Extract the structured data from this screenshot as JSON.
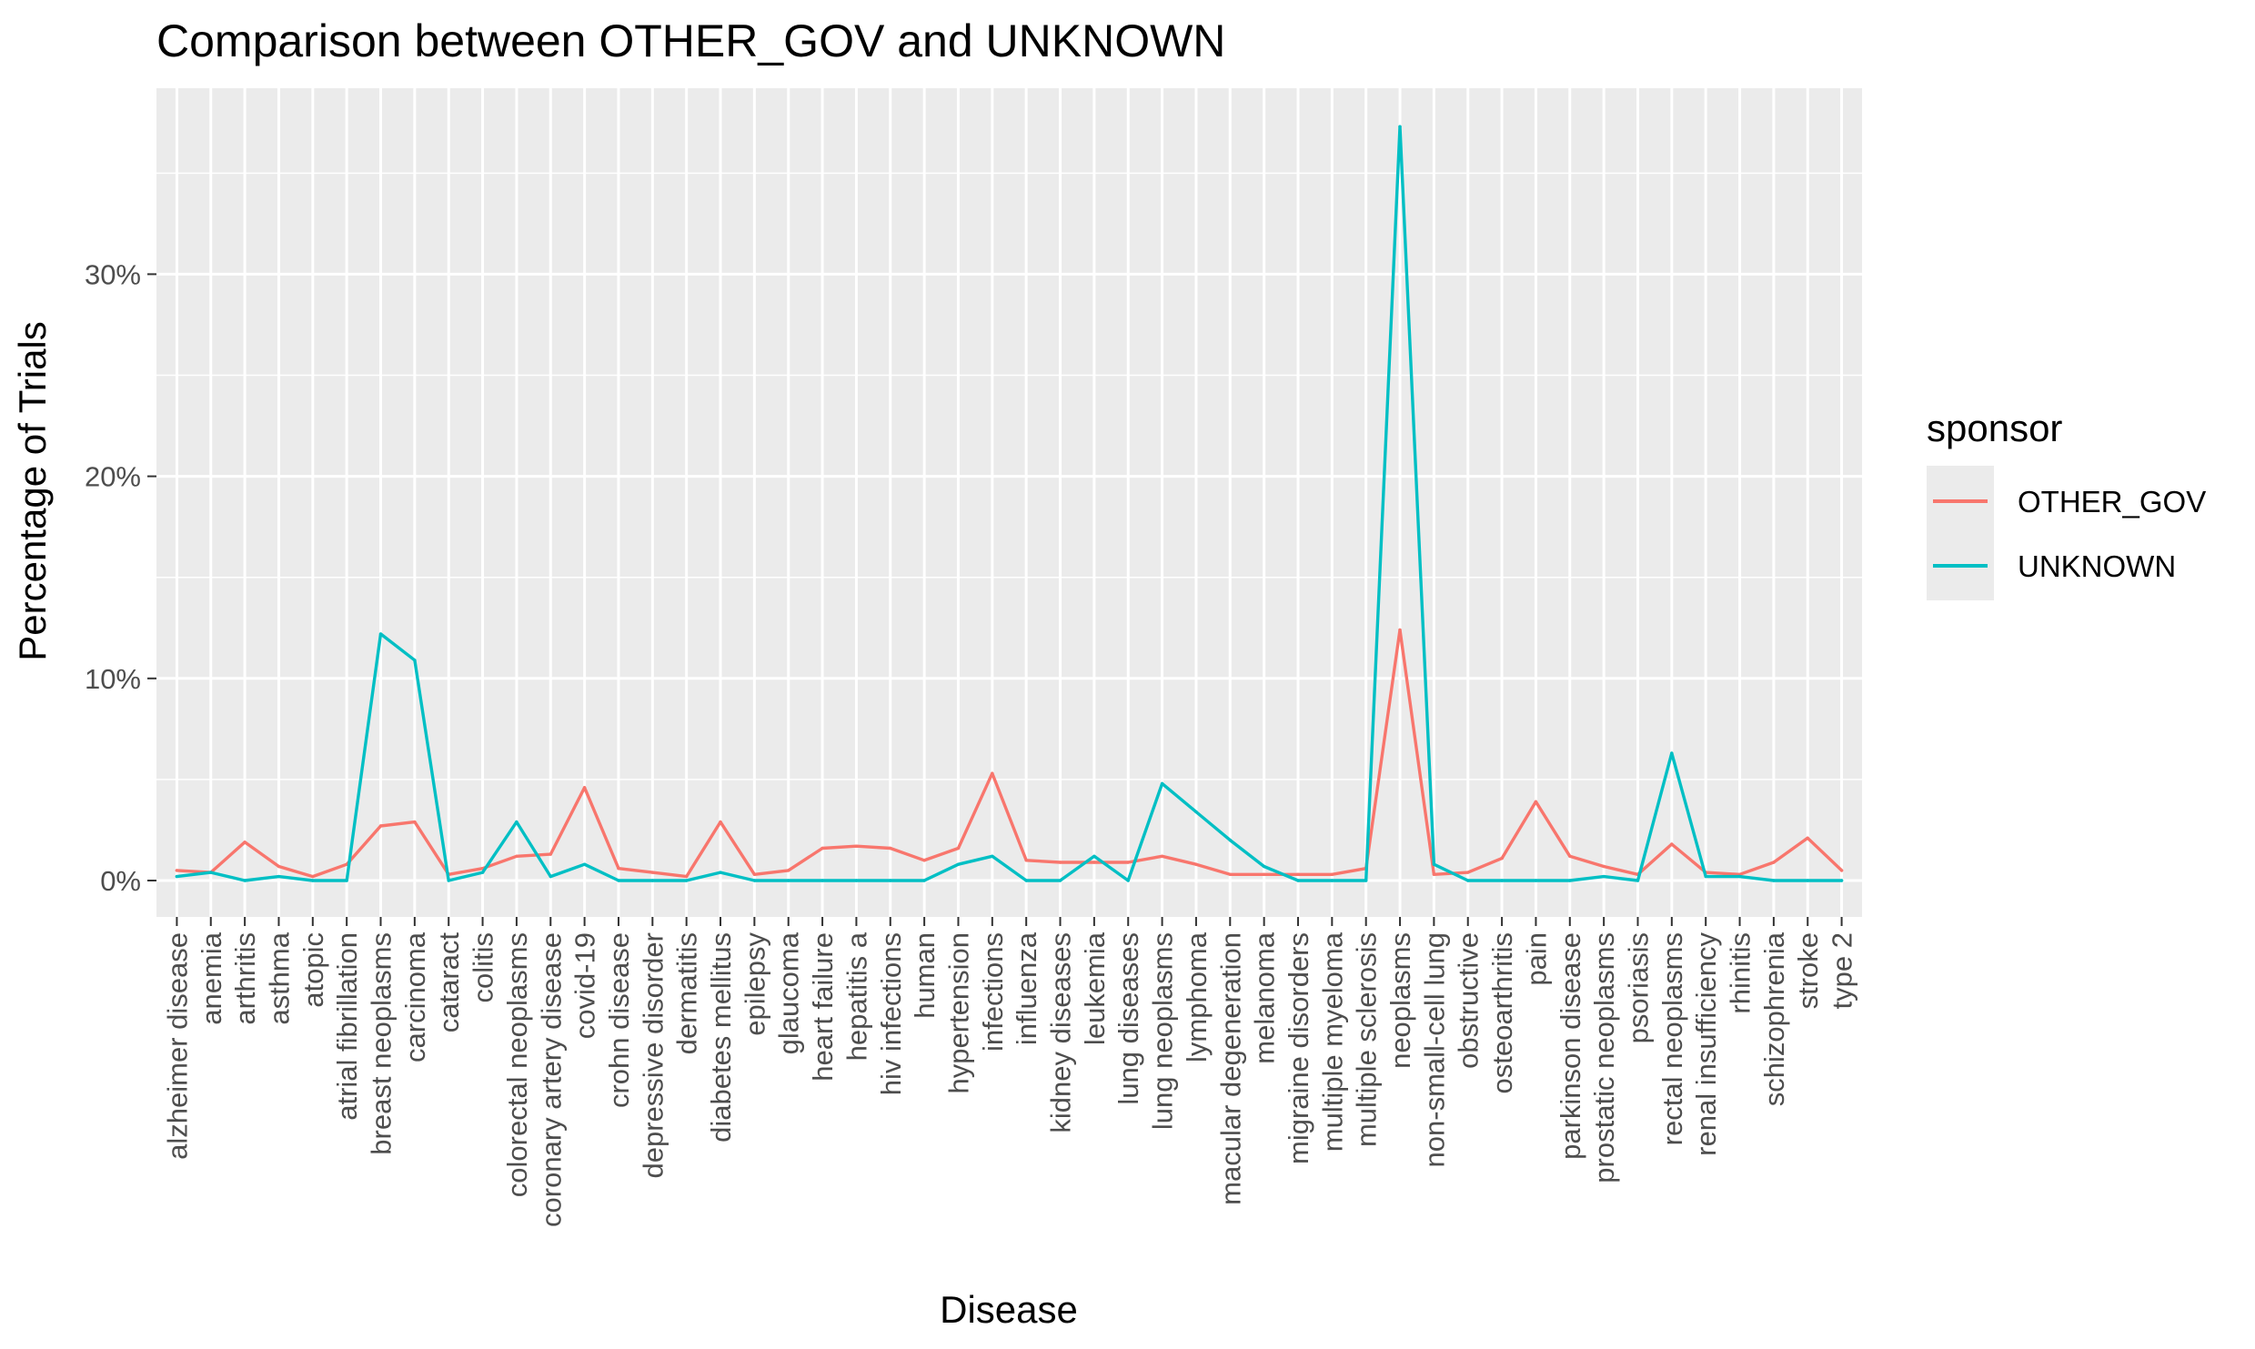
{
  "chart_data": {
    "type": "line",
    "title": "Comparison between OTHER_GOV and UNKNOWN",
    "xlabel": "Disease",
    "ylabel": "Percentage of Trials",
    "y_format": "percent",
    "ylim": [
      -1.8,
      39.2
    ],
    "yticks": [
      0,
      10,
      20,
      30
    ],
    "ytick_labels": [
      "0%",
      "10%",
      "20%",
      "30%"
    ],
    "grid": true,
    "legend": {
      "title": "sponsor",
      "placement": "right"
    },
    "categories": [
      "alzheimer disease",
      "anemia",
      "arthritis",
      "asthma",
      "atopic",
      "atrial fibrillation",
      "breast neoplasms",
      "carcinoma",
      "cataract",
      "colitis",
      "colorectal neoplasms",
      "coronary artery disease",
      "covid-19",
      "crohn disease",
      "depressive disorder",
      "dermatitis",
      "diabetes mellitus",
      "epilepsy",
      "glaucoma",
      "heart failure",
      "hepatitis a",
      "hiv infections",
      "human",
      "hypertension",
      "infections",
      "influenza",
      "kidney diseases",
      "leukemia",
      "lung diseases",
      "lung neoplasms",
      "lymphoma",
      "macular degeneration",
      "melanoma",
      "migraine disorders",
      "multiple myeloma",
      "multiple sclerosis",
      "neoplasms",
      "non-small-cell lung",
      "obstructive",
      "osteoarthritis",
      "pain",
      "parkinson disease",
      "prostatic neoplasms",
      "psoriasis",
      "rectal neoplasms",
      "renal insufficiency",
      "rhinitis",
      "schizophrenia",
      "stroke",
      "type 2"
    ],
    "series": [
      {
        "name": "OTHER_GOV",
        "color": "#F8766D",
        "values": [
          0.5,
          0.4,
          1.9,
          0.7,
          0.2,
          0.8,
          2.7,
          2.9,
          0.3,
          0.6,
          1.2,
          1.3,
          4.6,
          0.6,
          0.4,
          0.2,
          2.9,
          0.3,
          0.5,
          1.6,
          1.7,
          1.6,
          1.0,
          1.6,
          5.3,
          1.0,
          0.9,
          0.9,
          0.9,
          1.2,
          0.8,
          0.3,
          0.3,
          0.3,
          0.3,
          0.6,
          12.4,
          0.3,
          0.4,
          1.1,
          3.9,
          1.2,
          0.7,
          0.3,
          1.8,
          0.4,
          0.3,
          0.9,
          2.1,
          0.5
        ]
      },
      {
        "name": "UNKNOWN",
        "color": "#00BFC4",
        "values": [
          0.2,
          0.4,
          0.0,
          0.2,
          0.0,
          0.0,
          12.2,
          10.9,
          0.0,
          0.4,
          2.9,
          0.2,
          0.8,
          0.0,
          0.0,
          0.0,
          0.4,
          0.0,
          0.0,
          0.0,
          0.0,
          0.0,
          0.0,
          0.8,
          1.2,
          0.0,
          0.0,
          1.2,
          0.0,
          4.8,
          3.4,
          2.0,
          0.7,
          0.0,
          0.0,
          0.0,
          37.3,
          0.8,
          0.0,
          0.0,
          0.0,
          0.0,
          0.2,
          0.0,
          6.3,
          0.2,
          0.2,
          0.0,
          0.0,
          0.0
        ]
      }
    ]
  }
}
